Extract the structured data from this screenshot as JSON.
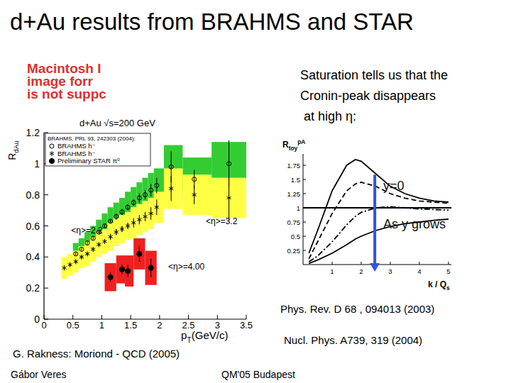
{
  "slide": {
    "title": "d+Au results from BRAHMS and STAR",
    "placeholder_lines": [
      "Macintosh I",
      "image forr",
      "is not suppc"
    ],
    "bullet_lines": [
      "Saturation tells us that the",
      "Cronin-peak disappears",
      " at high η:"
    ],
    "references": [
      "Phys. Rev. D 68 , 094013 (2003)",
      "Nucl. Phys. A739, 319 (2004)"
    ],
    "credit": "G. Rakness: Moriond - QCD (2005)",
    "footer": {
      "author": "Gábor Veres",
      "event": "QM'05 Budapest"
    }
  },
  "chart_data": [
    {
      "type": "scatter",
      "title": "d+Au √s=200 GeV",
      "xlabel": {
        "base": "p",
        "sub": "T",
        "rest": "(GeV/c)"
      },
      "ylabel": {
        "base": "R",
        "sub": "dAu"
      },
      "xlim": [
        0,
        3.5
      ],
      "ylim": [
        0,
        1.2
      ],
      "xticks": [
        0,
        0.5,
        1,
        1.5,
        2,
        2.5,
        3,
        3.5
      ],
      "yticks": [
        0,
        0.2,
        0.4,
        0.6,
        0.8,
        1,
        1.2
      ],
      "grid": false,
      "legend": "top-left",
      "legend_title": "BRAHMS, PRL 93, 242303 (2004):",
      "series": [
        {
          "name": "BRAHMS h⁻",
          "marker": "open_circle",
          "color": "#33cc33",
          "x": [
            0.55,
            0.65,
            0.75,
            0.85,
            0.95,
            1.05,
            1.15,
            1.25,
            1.35,
            1.45,
            1.55,
            1.65,
            1.75,
            1.85,
            1.95,
            2.2,
            2.6,
            3.2
          ],
          "values": [
            0.42,
            0.45,
            0.49,
            0.52,
            0.56,
            0.6,
            0.63,
            0.66,
            0.69,
            0.72,
            0.75,
            0.78,
            0.8,
            0.83,
            0.86,
            0.98,
            0.9,
            1.0
          ],
          "errors": [
            0.01,
            0.01,
            0.01,
            0.01,
            0.01,
            0.01,
            0.01,
            0.02,
            0.02,
            0.02,
            0.02,
            0.03,
            0.03,
            0.04,
            0.05,
            0.1,
            0.06,
            0.15
          ],
          "sys": [
            0.07,
            0.07,
            0.07,
            0.08,
            0.08,
            0.08,
            0.09,
            0.09,
            0.09,
            0.1,
            0.1,
            0.1,
            0.11,
            0.11,
            0.11,
            0.14,
            0.14,
            0.14
          ]
        },
        {
          "name": "BRAHMS h⁻",
          "marker": "star",
          "color": "#ffff44",
          "x": [
            0.35,
            0.45,
            0.55,
            0.65,
            0.75,
            0.85,
            0.95,
            1.05,
            1.15,
            1.25,
            1.35,
            1.45,
            1.55,
            1.65,
            1.75,
            1.85,
            1.95,
            2.2,
            2.6,
            3.2
          ],
          "values": [
            0.33,
            0.35,
            0.37,
            0.4,
            0.42,
            0.45,
            0.48,
            0.5,
            0.53,
            0.56,
            0.58,
            0.6,
            0.62,
            0.64,
            0.66,
            0.68,
            0.72,
            0.84,
            0.8,
            0.78
          ],
          "errors": [
            0.01,
            0.01,
            0.01,
            0.01,
            0.01,
            0.01,
            0.01,
            0.01,
            0.02,
            0.02,
            0.02,
            0.02,
            0.03,
            0.03,
            0.03,
            0.04,
            0.05,
            0.08,
            0.06,
            0.14
          ],
          "sys": [
            0.07,
            0.07,
            0.07,
            0.07,
            0.08,
            0.08,
            0.08,
            0.08,
            0.09,
            0.09,
            0.09,
            0.09,
            0.1,
            0.1,
            0.1,
            0.1,
            0.1,
            0.13,
            0.13,
            0.13
          ]
        },
        {
          "name": "Preliminary STAR π⁰",
          "marker": "filled_circle",
          "color": "#ee2020",
          "x": [
            1.15,
            1.35,
            1.45,
            1.65,
            1.85
          ],
          "values": [
            0.27,
            0.32,
            0.31,
            0.42,
            0.33
          ],
          "errors": [
            0.03,
            0.03,
            0.04,
            0.05,
            0.06
          ],
          "sys": [
            0.09,
            0.09,
            0.1,
            0.1,
            0.11
          ]
        }
      ],
      "annotations": [
        {
          "text": "<η>=2.2",
          "x": 0.47,
          "y": 0.55
        },
        {
          "text": "<η>=3.2",
          "x": 2.8,
          "y": 0.61
        },
        {
          "text": "<η>=4.00",
          "x": 2.15,
          "y": 0.32
        }
      ]
    },
    {
      "type": "line",
      "xlabel": {
        "base": "k / Q",
        "sub": "s"
      },
      "ylabel": {
        "base": "R",
        "sub": "toy",
        "sup": "pA"
      },
      "xlim": [
        0,
        5.1
      ],
      "ylim": [
        0,
        1.95
      ],
      "xticks": [
        1,
        2,
        3,
        4,
        5
      ],
      "yticks": [
        0.25,
        0.5,
        0.75,
        1,
        1.25,
        1.5,
        1.75
      ],
      "grid": false,
      "series": [
        {
          "line_style": "solid",
          "color": "#000000",
          "x": [
            0.2,
            0.5,
            1,
            1.5,
            1.8,
            2,
            2.5,
            3,
            3.5,
            4,
            4.5,
            5
          ],
          "values": [
            0.2,
            0.6,
            1.3,
            1.75,
            1.85,
            1.82,
            1.6,
            1.38,
            1.25,
            1.17,
            1.12,
            1.1
          ]
        },
        {
          "line_style": "dashed",
          "color": "#000000",
          "x": [
            0.2,
            0.5,
            1,
            1.5,
            1.8,
            2,
            2.5,
            3,
            3.5,
            4,
            4.5,
            5
          ],
          "values": [
            0.1,
            0.4,
            0.9,
            1.3,
            1.42,
            1.45,
            1.38,
            1.25,
            1.17,
            1.12,
            1.1,
            1.08
          ]
        },
        {
          "line_style": "dashdot",
          "color": "#000000",
          "x": [
            0.2,
            0.5,
            1,
            1.5,
            1.8,
            2,
            2.5,
            3,
            3.5,
            4,
            4.5,
            5
          ],
          "values": [
            0.05,
            0.15,
            0.4,
            0.7,
            0.85,
            0.92,
            1.0,
            1.02,
            1.0,
            0.98,
            0.97,
            0.96
          ]
        },
        {
          "line_style": "solid",
          "color": "#000000",
          "x": [
            0.2,
            0.5,
            1,
            1.5,
            1.8,
            2,
            2.5,
            3,
            3.5,
            4,
            4.5,
            5
          ],
          "values": [
            0.02,
            0.08,
            0.2,
            0.35,
            0.45,
            0.5,
            0.6,
            0.67,
            0.72,
            0.75,
            0.78,
            0.8
          ]
        },
        {
          "line_style": "solid",
          "color": "#000000",
          "x": [
            0,
            5.1
          ],
          "values": [
            1,
            1
          ]
        }
      ],
      "annotations": [
        {
          "text": "y=0",
          "x": 2.76,
          "y": 1.31
        },
        {
          "text": "As y grows",
          "x": 2.76,
          "y": 0.64
        }
      ]
    }
  ]
}
